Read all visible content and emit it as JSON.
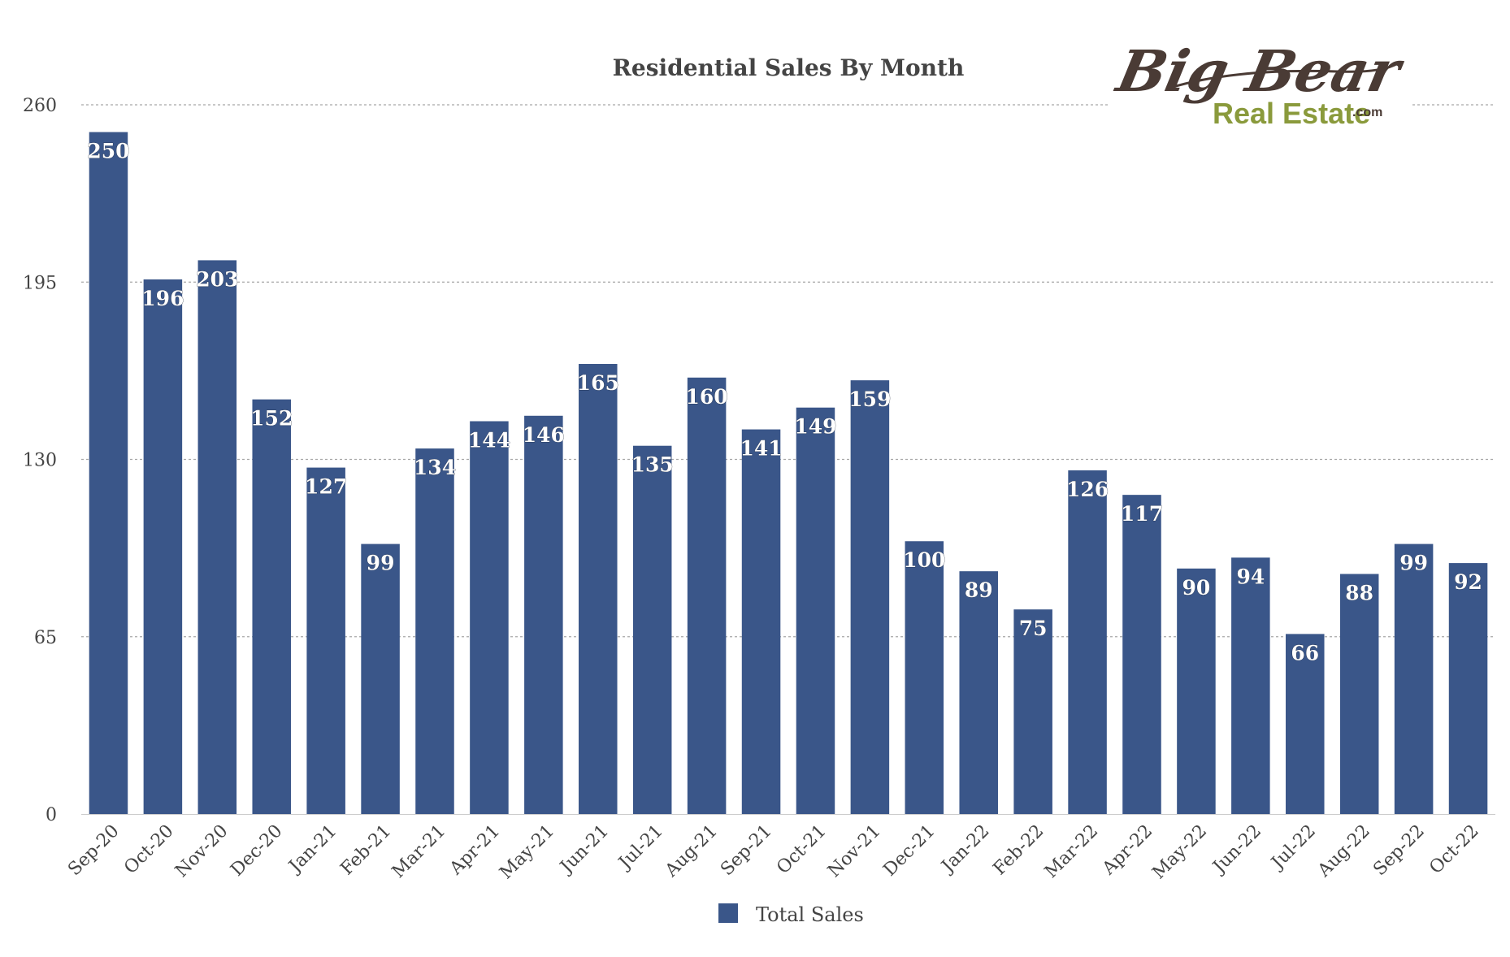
{
  "logo": {
    "line1": "Big Bear",
    "line2": "Real Estate",
    "suffix": ".com"
  },
  "colors": {
    "bar": "#3a5689",
    "grid": "#a8a8a8",
    "axis_text": "#444444",
    "title_text": "#444444",
    "logo_brown": "#4a3b35",
    "logo_green": "#8a9a3c"
  },
  "chart_data": {
    "type": "bar",
    "title": "Residential Sales By Month",
    "xlabel": "",
    "ylabel": "",
    "categories": [
      "Sep-20",
      "Oct-20",
      "Nov-20",
      "Dec-20",
      "Jan-21",
      "Feb-21",
      "Mar-21",
      "Apr-21",
      "May-21",
      "Jun-21",
      "Jul-21",
      "Aug-21",
      "Sep-21",
      "Oct-21",
      "Nov-21",
      "Dec-21",
      "Jan-22",
      "Feb-22",
      "Mar-22",
      "Apr-22",
      "May-22",
      "Jun-22",
      "Jul-22",
      "Aug-22",
      "Sep-22",
      "Oct-22"
    ],
    "series": [
      {
        "name": "Total Sales",
        "values": [
          250,
          196,
          203,
          152,
          127,
          99,
          134,
          144,
          146,
          165,
          135,
          160,
          141,
          149,
          159,
          100,
          89,
          75,
          126,
          117,
          90,
          94,
          66,
          88,
          99,
          92
        ]
      }
    ],
    "ylim": [
      0,
      260
    ],
    "yticks": [
      0,
      65,
      130,
      195,
      260
    ],
    "grid": true,
    "legend": "bottom-center",
    "data_labels": true
  }
}
